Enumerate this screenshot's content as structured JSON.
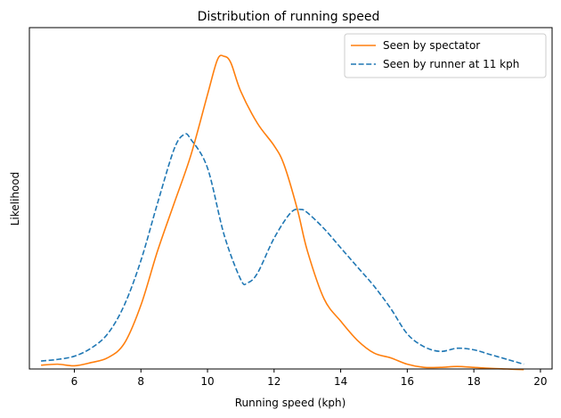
{
  "chart_data": {
    "type": "line",
    "title": "Distribution of running speed",
    "xlabel": "Running speed (kph)",
    "ylabel": "Likelihood",
    "xlim": [
      4.65,
      20.35
    ],
    "ylim": [
      0,
      1.07
    ],
    "xticks": [
      6,
      8,
      10,
      12,
      14,
      16,
      18,
      20
    ],
    "yticks_shown": false,
    "grid": false,
    "legend_position": "upper right",
    "series": [
      {
        "name": "Seen by spectator",
        "color": "#ff7f0e",
        "linestyle": "solid",
        "points": [
          [
            5.0,
            0.012
          ],
          [
            5.5,
            0.015
          ],
          [
            6.0,
            0.01
          ],
          [
            6.5,
            0.02
          ],
          [
            7.0,
            0.035
          ],
          [
            7.5,
            0.08
          ],
          [
            8.0,
            0.2
          ],
          [
            8.5,
            0.37
          ],
          [
            9.0,
            0.52
          ],
          [
            9.5,
            0.67
          ],
          [
            10.0,
            0.86
          ],
          [
            10.3,
            0.97
          ],
          [
            10.5,
            0.98
          ],
          [
            10.7,
            0.96
          ],
          [
            11.0,
            0.87
          ],
          [
            11.5,
            0.77
          ],
          [
            12.0,
            0.7
          ],
          [
            12.3,
            0.64
          ],
          [
            12.7,
            0.5
          ],
          [
            13.0,
            0.37
          ],
          [
            13.5,
            0.22
          ],
          [
            14.0,
            0.15
          ],
          [
            14.5,
            0.09
          ],
          [
            15.0,
            0.05
          ],
          [
            15.5,
            0.035
          ],
          [
            16.0,
            0.015
          ],
          [
            16.5,
            0.005
          ],
          [
            17.0,
            0.005
          ],
          [
            17.5,
            0.008
          ],
          [
            18.0,
            0.005
          ],
          [
            18.5,
            0.002
          ],
          [
            19.0,
            0.0
          ],
          [
            19.5,
            -0.002
          ]
        ]
      },
      {
        "name": "Seen by runner at 11 kph",
        "color": "#1f77b4",
        "linestyle": "dashed",
        "points": [
          [
            5.0,
            0.025
          ],
          [
            5.5,
            0.03
          ],
          [
            6.0,
            0.04
          ],
          [
            6.5,
            0.065
          ],
          [
            7.0,
            0.11
          ],
          [
            7.5,
            0.2
          ],
          [
            8.0,
            0.34
          ],
          [
            8.5,
            0.52
          ],
          [
            9.0,
            0.69
          ],
          [
            9.3,
            0.735
          ],
          [
            9.5,
            0.72
          ],
          [
            10.0,
            0.63
          ],
          [
            10.5,
            0.42
          ],
          [
            11.0,
            0.28
          ],
          [
            11.2,
            0.27
          ],
          [
            11.5,
            0.3
          ],
          [
            12.0,
            0.41
          ],
          [
            12.5,
            0.49
          ],
          [
            12.8,
            0.5
          ],
          [
            13.0,
            0.49
          ],
          [
            13.5,
            0.44
          ],
          [
            14.0,
            0.38
          ],
          [
            14.5,
            0.32
          ],
          [
            15.0,
            0.26
          ],
          [
            15.5,
            0.19
          ],
          [
            16.0,
            0.11
          ],
          [
            16.5,
            0.07
          ],
          [
            17.0,
            0.055
          ],
          [
            17.5,
            0.065
          ],
          [
            18.0,
            0.06
          ],
          [
            18.5,
            0.045
          ],
          [
            19.0,
            0.03
          ],
          [
            19.5,
            0.015
          ]
        ]
      }
    ]
  }
}
